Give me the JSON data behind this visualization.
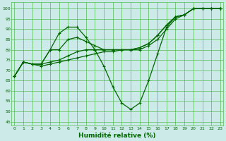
{
  "x": [
    0,
    1,
    2,
    3,
    4,
    5,
    6,
    7,
    8,
    9,
    10,
    11,
    12,
    13,
    14,
    15,
    16,
    17,
    18,
    19,
    20,
    21,
    22,
    23
  ],
  "line1": [
    67,
    74,
    73,
    73,
    80,
    88,
    91,
    91,
    86,
    80,
    72,
    62,
    54,
    51,
    54,
    65,
    78,
    91,
    96,
    97,
    100,
    100,
    100,
    100
  ],
  "line2": [
    67,
    74,
    73,
    73,
    80,
    80,
    85,
    86,
    84,
    82,
    80,
    80,
    80,
    80,
    80,
    82,
    85,
    90,
    95,
    97,
    100,
    100,
    100,
    100
  ],
  "line3": [
    67,
    74,
    73,
    73,
    74,
    75,
    77,
    79,
    80,
    80,
    80,
    80,
    80,
    80,
    81,
    83,
    87,
    92,
    96,
    97,
    100,
    100,
    100,
    100
  ],
  "line4": [
    67,
    74,
    73,
    72,
    73,
    74,
    75,
    76,
    77,
    78,
    79,
    79,
    80,
    80,
    81,
    83,
    87,
    92,
    96,
    97,
    100,
    100,
    100,
    100
  ],
  "bg_color": "#cceae7",
  "grid_color": "#55bb55",
  "line_color": "#006600",
  "marker": "+",
  "xlabel": "Humidité relative (%)",
  "xlabel_color": "#006600",
  "yticks": [
    45,
    50,
    55,
    60,
    65,
    70,
    75,
    80,
    85,
    90,
    95,
    100
  ],
  "xticks": [
    0,
    1,
    2,
    3,
    4,
    5,
    6,
    7,
    8,
    9,
    10,
    11,
    12,
    13,
    14,
    15,
    16,
    17,
    18,
    19,
    20,
    21,
    22,
    23
  ],
  "ylim": [
    43,
    103
  ],
  "xlim": [
    -0.3,
    23.3
  ]
}
